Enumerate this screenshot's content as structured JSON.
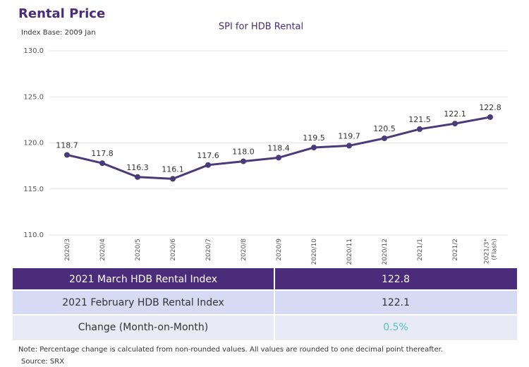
{
  "header": {
    "title": "Rental Price",
    "subtitle": "Index Base: 2009 Jan"
  },
  "chart_data": {
    "type": "line",
    "title": "SPI for HDB Rental",
    "categories": [
      "2020/3",
      "2020/4",
      "2020/5",
      "2020/6",
      "2020/7",
      "2020/8",
      "2020/9",
      "2020/10",
      "2020/11",
      "2020/12",
      "2021/1",
      "2021/2",
      "2021/3*\n(Flash)"
    ],
    "values": [
      118.7,
      117.8,
      116.3,
      116.1,
      117.6,
      118.0,
      118.4,
      119.5,
      119.7,
      120.5,
      121.5,
      122.1,
      122.8
    ],
    "value_labels": [
      "118.7",
      "117.8",
      "116.3",
      "116.1",
      "117.6",
      "118.0",
      "118.4",
      "119.5",
      "119.7",
      "120.5",
      "121.5",
      "122.1",
      "122.8"
    ],
    "color": "#4b3a7a",
    "ylim": [
      110,
      130
    ],
    "yticks": [
      {
        "value": 110,
        "label": "110.0"
      },
      {
        "value": 115,
        "label": "115.0"
      },
      {
        "value": 120,
        "label": "120.0"
      },
      {
        "value": 125,
        "label": "125.0"
      },
      {
        "value": 130,
        "label": "130.0"
      }
    ],
    "grid": true
  },
  "table": {
    "rows": [
      [
        "2021 March HDB Rental Index",
        "122.8"
      ],
      [
        "2021 February HDB Rental Index",
        "122.1"
      ],
      [
        "Change (Month-on-Month)",
        "0.5%"
      ]
    ]
  },
  "note": "Note: Percentage change is calculated from non-rounded values.  All values are rounded to one decimal point thereafter.",
  "source": "Source: SRX"
}
